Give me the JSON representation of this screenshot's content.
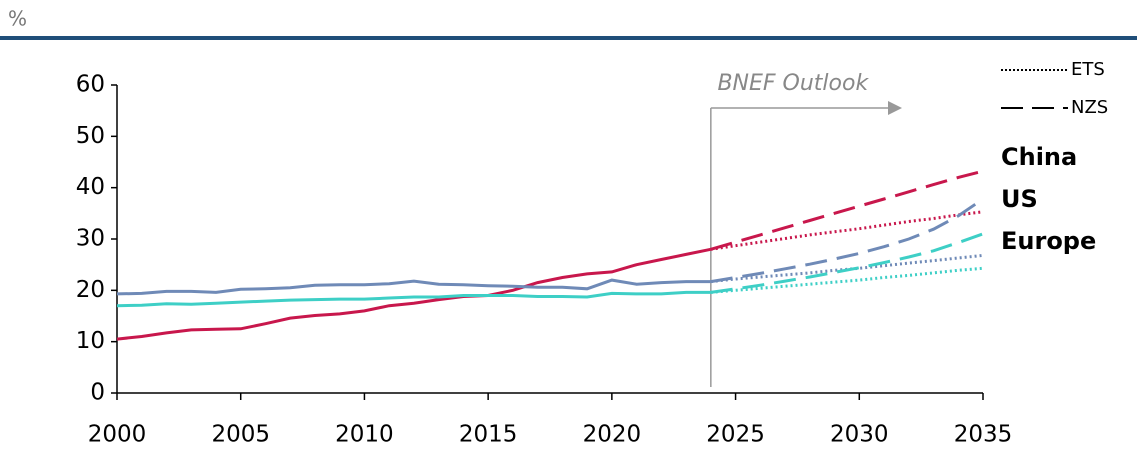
{
  "chart_data": {
    "type": "line",
    "unit_label": "%",
    "x": [
      2000,
      2001,
      2002,
      2003,
      2004,
      2005,
      2006,
      2007,
      2008,
      2009,
      2010,
      2011,
      2012,
      2013,
      2014,
      2015,
      2016,
      2017,
      2018,
      2019,
      2020,
      2021,
      2022,
      2023,
      2024,
      2025,
      2026,
      2027,
      2028,
      2029,
      2030,
      2031,
      2032,
      2033,
      2034,
      2035
    ],
    "xlim": [
      2000,
      2035
    ],
    "xticks": [
      2000,
      2005,
      2010,
      2015,
      2020,
      2025,
      2030,
      2035
    ],
    "ylim": [
      0,
      60
    ],
    "yticks": [
      0,
      10,
      20,
      30,
      40,
      50,
      60
    ],
    "grid": false,
    "scenarios": [
      {
        "name": "ETS",
        "dash": "dotted"
      },
      {
        "name": "NZS",
        "dash": "dashed"
      }
    ],
    "annotation": {
      "text": "BNEF Outlook",
      "x": 2024
    },
    "series": [
      {
        "name": "China",
        "color": "#c8174c",
        "values": [
          10.5,
          11,
          11.7,
          12.3,
          12.4,
          12.5,
          13.5,
          14.6,
          15.1,
          15.4,
          16,
          17,
          17.5,
          18.2,
          18.8,
          19,
          20,
          21.5,
          22.5,
          23.2,
          23.6,
          25,
          26,
          27,
          28,
          null,
          null,
          null,
          null,
          null,
          null,
          null,
          null,
          null,
          null,
          null
        ],
        "projections": [
          [
            null,
            null,
            null,
            null,
            null,
            null,
            null,
            null,
            null,
            null,
            null,
            null,
            null,
            null,
            null,
            null,
            null,
            null,
            null,
            null,
            null,
            null,
            null,
            null,
            28,
            28.7,
            29.4,
            30.1,
            30.8,
            31.4,
            32,
            32.7,
            33.4,
            34,
            34.7,
            35.3
          ],
          [
            null,
            null,
            null,
            null,
            null,
            null,
            null,
            null,
            null,
            null,
            null,
            null,
            null,
            null,
            null,
            null,
            null,
            null,
            null,
            null,
            null,
            null,
            null,
            null,
            28,
            29.4,
            30.8,
            32.2,
            33.6,
            35,
            36.4,
            37.8,
            39.2,
            40.6,
            42,
            43.2
          ]
        ]
      },
      {
        "name": "US",
        "color": "#6f8ab7",
        "values": [
          19.3,
          19.4,
          19.8,
          19.8,
          19.6,
          20.2,
          20.3,
          20.5,
          21,
          21.1,
          21.1,
          21.3,
          21.8,
          21.2,
          21.1,
          20.9,
          20.8,
          20.6,
          20.6,
          20.3,
          22,
          21.2,
          21.5,
          21.7,
          21.7,
          null,
          null,
          null,
          null,
          null,
          null,
          null,
          null,
          null,
          null,
          null
        ],
        "projections": [
          [
            null,
            null,
            null,
            null,
            null,
            null,
            null,
            null,
            null,
            null,
            null,
            null,
            null,
            null,
            null,
            null,
            null,
            null,
            null,
            null,
            null,
            null,
            null,
            null,
            21.7,
            22.2,
            22.6,
            23,
            23.4,
            23.9,
            24.3,
            24.8,
            25.3,
            25.8,
            26.3,
            26.8
          ],
          [
            null,
            null,
            null,
            null,
            null,
            null,
            null,
            null,
            null,
            null,
            null,
            null,
            null,
            null,
            null,
            null,
            null,
            null,
            null,
            null,
            null,
            null,
            null,
            null,
            21.7,
            22.5,
            23.3,
            24.2,
            25.1,
            26.1,
            27.2,
            28.5,
            30,
            31.9,
            34.5,
            37.8
          ]
        ]
      },
      {
        "name": "Europe",
        "color": "#3ecfc6",
        "values": [
          17,
          17.1,
          17.4,
          17.3,
          17.5,
          17.7,
          17.9,
          18.1,
          18.2,
          18.3,
          18.3,
          18.5,
          18.7,
          18.7,
          19,
          19,
          19,
          18.8,
          18.8,
          18.7,
          19.4,
          19.3,
          19.3,
          19.6,
          19.6,
          null,
          null,
          null,
          null,
          null,
          null,
          null,
          null,
          null,
          null,
          null
        ],
        "projections": [
          [
            null,
            null,
            null,
            null,
            null,
            null,
            null,
            null,
            null,
            null,
            null,
            null,
            null,
            null,
            null,
            null,
            null,
            null,
            null,
            null,
            null,
            null,
            null,
            null,
            19.6,
            20,
            20.4,
            20.8,
            21.2,
            21.6,
            22,
            22.5,
            22.9,
            23.4,
            23.9,
            24.3
          ],
          [
            null,
            null,
            null,
            null,
            null,
            null,
            null,
            null,
            null,
            null,
            null,
            null,
            null,
            null,
            null,
            null,
            null,
            null,
            null,
            null,
            null,
            null,
            null,
            null,
            19.6,
            20.3,
            21,
            21.8,
            22.6,
            23.5,
            24.4,
            25.4,
            26.5,
            27.7,
            29.3,
            31
          ]
        ]
      }
    ]
  }
}
